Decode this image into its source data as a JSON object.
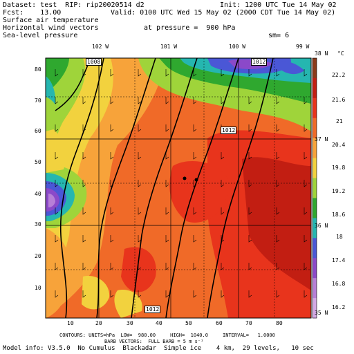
{
  "header": {
    "dataset": "Dataset: test  RIP: rip20020514 d2",
    "init": "Init: 1200 UTC Tue 14 May 02",
    "fcst": "Fcst:    13.00",
    "valid": "Valid: 0100 UTC Wed 15 May 02 (2000 CDT Tue 14 May 02)",
    "line_temp": "Surface air temperature",
    "line_wind": "Horizontal wind vectors",
    "pressure": "at pressure =  900 hPa",
    "line_slp": "Sea-level pressure",
    "sm": "sm= 6"
  },
  "map": {
    "lon_labels": [
      "102 W",
      "101 W",
      "100 W",
      "99 W"
    ],
    "lat_labels": [
      "38 N",
      "37 N",
      "36 N",
      "35 N"
    ],
    "y_ticks": [
      "80",
      "70",
      "60",
      "50",
      "40",
      "30",
      "20",
      "10"
    ],
    "x_ticks": [
      "10",
      "20",
      "30",
      "40",
      "50",
      "60",
      "70",
      "80"
    ],
    "contour_labels": [
      "1008",
      "1012",
      "1012",
      "1012"
    ]
  },
  "colorbar": {
    "unit": "°C",
    "labels": [
      "22.2",
      "21.6",
      "21",
      "20.4",
      "19.8",
      "19.2",
      "18.6",
      "18",
      "17.4",
      "16.8",
      "16.2"
    ],
    "colors": [
      "#8b3a1a",
      "#c21e12",
      "#e8341c",
      "#f06a28",
      "#f7a33a",
      "#f2d23e",
      "#9fd43a",
      "#2fa82f",
      "#25b6b0",
      "#4a57d6",
      "#8b49c9",
      "#b77fd7",
      "#d3a8e4"
    ]
  },
  "footer": {
    "line1": "CONTOURS: UNITS=hPa  LOW=  980.00     HIGH=  1040.0     INTERVAL=   1.0000",
    "line2": "BARB VECTORS:  FULL BARB = 5 m s⁻¹",
    "model": "Model info: V3.5.0  No Cumulus  Blackadar  Simple ice    4 km,  29 levels,   10 sec"
  }
}
